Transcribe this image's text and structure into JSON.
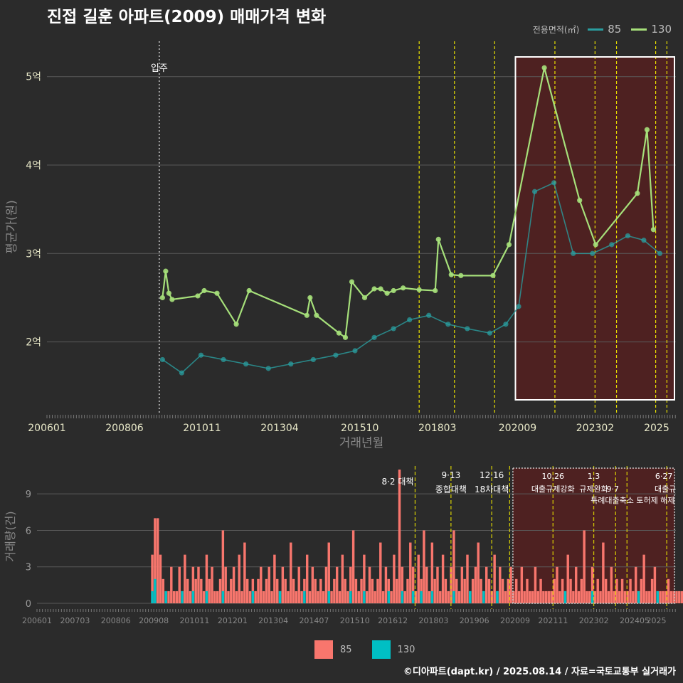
{
  "title": "진접 길훈 아파트(2009) 매매가격 변화",
  "caption": "©디아파트(dapt.kr) / 2025.08.14 / 자료=국토교통부 실거래가",
  "legend_top": {
    "title": "전용면적(㎡)",
    "items": [
      {
        "label": "85",
        "color": "#2a9d9f"
      },
      {
        "label": "130",
        "color": "#a6e07a"
      }
    ]
  },
  "legend_bottom": {
    "items": [
      {
        "label": "85",
        "color": "#f8766d"
      },
      {
        "label": "130",
        "color": "#00bfc4"
      }
    ]
  },
  "colors": {
    "bg": "#2b2b2b",
    "grid": "#5a5a5a",
    "vline": "#e8e000",
    "shade": "#6b1a1a",
    "highlight_box": "#ffffff"
  },
  "chart_data": [
    {
      "type": "line",
      "title": "진접 길훈 아파트(2009) 매매가격 변화",
      "xlabel": "거래년월",
      "ylabel": "평균가(원)",
      "x_ticks": [
        "200601",
        "200806",
        "201011",
        "201304",
        "201510",
        "201803",
        "202009",
        "202302",
        "2025"
      ],
      "y_ticks": [
        {
          "value": 2,
          "label": "2억"
        },
        {
          "value": 3,
          "label": "3억"
        },
        {
          "value": 4,
          "label": "4억"
        },
        {
          "value": 5,
          "label": "5억"
        }
      ],
      "ylim": [
        1.2,
        5.4
      ],
      "xlim": [
        2006.0,
        2025.6
      ],
      "annotation": {
        "label": "입주",
        "x": 2009.5
      },
      "policy_lines_x": [
        2017.6,
        2018.7,
        2019.95,
        2021.83,
        2023.08,
        2023.75,
        2024.97,
        2025.32
      ],
      "highlight_x_range": [
        2020.6,
        2025.6
      ],
      "series": [
        {
          "name": "130",
          "x": [
            2009.6,
            2009.7,
            2009.8,
            2009.9,
            2010.7,
            2010.9,
            2011.3,
            2011.9,
            2012.3,
            2014.1,
            2014.2,
            2014.4,
            2015.1,
            2015.3,
            2015.5,
            2015.9,
            2016.2,
            2016.4,
            2016.6,
            2016.8,
            2017.1,
            2017.6,
            2018.1,
            2018.2,
            2018.6,
            2018.9,
            2019.9,
            2020.4,
            2021.5,
            2022.6,
            2023.1,
            2024.4,
            2024.7,
            2024.9
          ],
          "values": [
            2.5,
            2.8,
            2.55,
            2.48,
            2.52,
            2.58,
            2.55,
            2.2,
            2.58,
            2.3,
            2.5,
            2.3,
            2.1,
            2.05,
            2.68,
            2.5,
            2.6,
            2.6,
            2.55,
            2.58,
            2.61,
            2.59,
            2.58,
            3.16,
            2.76,
            2.75,
            2.75,
            3.1,
            5.1,
            3.6,
            3.1,
            3.68,
            4.4,
            3.27
          ],
          "color": "#a6e07a"
        },
        {
          "name": "85",
          "x": [
            2009.6,
            2010.2,
            2010.8,
            2011.5,
            2012.2,
            2012.9,
            2013.6,
            2014.3,
            2015.0,
            2015.6,
            2016.2,
            2016.8,
            2017.3,
            2017.9,
            2018.5,
            2019.1,
            2019.8,
            2020.3,
            2020.7,
            2021.2,
            2021.8,
            2022.4,
            2023.0,
            2023.6,
            2024.1,
            2024.6,
            2025.1
          ],
          "values": [
            1.8,
            1.65,
            1.85,
            1.8,
            1.75,
            1.7,
            1.75,
            1.8,
            1.85,
            1.9,
            2.05,
            2.15,
            2.25,
            2.3,
            2.2,
            2.15,
            2.1,
            2.2,
            2.4,
            3.7,
            3.8,
            3.0,
            3.0,
            3.1,
            3.2,
            3.15,
            3.0
          ],
          "color": "#2a9d9f"
        }
      ]
    },
    {
      "type": "bar",
      "ylabel": "거래량(건)",
      "ylim": [
        0,
        11
      ],
      "y_ticks": [
        0,
        3,
        6,
        9
      ],
      "x_ticks": [
        "200601",
        "200703",
        "200806",
        "200908",
        "201011",
        "201201",
        "201304",
        "201407",
        "201510",
        "201612",
        "201803",
        "201906",
        "202009",
        "202111",
        "202302",
        "202405",
        "2025"
      ],
      "policies": [
        {
          "date": "8·2",
          "name": "대책",
          "x": 2017.6
        },
        {
          "date": "9·13",
          "name": "종합대책",
          "x": 2018.7
        },
        {
          "date": "12·16",
          "name": "18차대책",
          "x": 2019.95
        },
        {
          "date": "",
          "name": "",
          "x": 2020.5
        },
        {
          "date": "10.26",
          "name": "대출규제강화",
          "x": 2021.83
        },
        {
          "date": "1.3",
          "name": "규제완화",
          "x": 2023.08
        },
        {
          "date": "",
          "name": "9·7",
          "x": 2023.75
        },
        {
          "date": "",
          "name": "특례대출축소 토허제 해제",
          "x": 2024.1
        },
        {
          "date": "6·27",
          "name": "대출규",
          "x": 2025.32
        }
      ],
      "highlight_x_range": [
        2020.6,
        2025.6
      ],
      "series": [
        {
          "name": "85",
          "color": "#f8766d",
          "values_note": "monthly counts",
          "x_start": 2009.5,
          "values": [
            4,
            7,
            7,
            4,
            2,
            1,
            1,
            3,
            1,
            1,
            3,
            1,
            4,
            2,
            1,
            3,
            2,
            3,
            2,
            1,
            4,
            2,
            3,
            1,
            1,
            2,
            6,
            3,
            1,
            2,
            3,
            1,
            4,
            1,
            5,
            2,
            1,
            2,
            1,
            2,
            3,
            1,
            2,
            3,
            1,
            4,
            2,
            1,
            3,
            2,
            1,
            5,
            2,
            1,
            3,
            1,
            2,
            4,
            1,
            3,
            2,
            1,
            2,
            1,
            3,
            5,
            1,
            2,
            3,
            1,
            4,
            2,
            1,
            3,
            6,
            2,
            1,
            2,
            4,
            1,
            3,
            2,
            1,
            2,
            5,
            1,
            3,
            2,
            1,
            4,
            2,
            11,
            3,
            1,
            2,
            5,
            3,
            1,
            4,
            2,
            6,
            3,
            1,
            5,
            2,
            3,
            1,
            4,
            2,
            1,
            3,
            6,
            2,
            1,
            3,
            2,
            4,
            1,
            2,
            3,
            5,
            2,
            1,
            3,
            2,
            1,
            4,
            1,
            3,
            2,
            1,
            2,
            3,
            1,
            2,
            1,
            3,
            1,
            2,
            1,
            1,
            3,
            1,
            2,
            1,
            1,
            1,
            1,
            2,
            3,
            1,
            2,
            1,
            4,
            2,
            1,
            3,
            1,
            2,
            6,
            1,
            1,
            3,
            1,
            2,
            1,
            5,
            2,
            1,
            3,
            1,
            2,
            1,
            2,
            1,
            1,
            2,
            1,
            3,
            1,
            2,
            4,
            1,
            1,
            2,
            3,
            1,
            1,
            1,
            1,
            2,
            1,
            1,
            1,
            1,
            1,
            1
          ]
        },
        {
          "name": "130",
          "color": "#00bfc4",
          "x_start": 2009.5,
          "values": [
            1,
            2,
            0,
            0,
            0,
            1,
            0,
            0,
            0,
            0,
            0,
            1,
            0,
            0,
            0,
            1,
            0,
            0,
            0,
            0,
            1,
            0,
            0,
            0,
            0,
            0,
            1,
            0,
            0,
            0,
            0,
            0,
            0,
            0,
            0,
            0,
            0,
            1,
            0,
            0,
            0,
            0,
            0,
            0,
            0,
            0,
            0,
            1,
            0,
            0,
            0,
            0,
            0,
            0,
            0,
            0,
            1,
            0,
            0,
            0,
            0,
            0,
            0,
            0,
            0,
            1,
            0,
            0,
            0,
            0,
            0,
            0,
            0,
            1,
            0,
            0,
            0,
            0,
            1,
            0,
            0,
            0,
            0,
            0,
            0,
            0,
            0,
            1,
            0,
            0,
            0,
            0,
            1,
            0,
            0,
            0,
            1,
            0,
            0,
            1,
            0,
            0,
            0,
            1,
            0,
            0,
            0,
            0,
            0,
            0,
            0,
            1,
            0,
            0,
            0,
            0,
            0,
            1,
            0,
            0,
            0,
            0,
            1,
            0,
            0,
            0,
            0,
            1,
            0,
            0,
            0,
            0,
            0,
            0,
            0,
            0,
            0,
            0,
            0,
            0,
            0,
            0,
            0,
            0,
            0,
            0,
            0,
            0,
            0,
            0,
            0,
            0,
            1,
            0,
            0,
            0,
            0,
            0,
            0,
            0,
            0,
            0,
            1,
            0,
            0,
            0,
            0,
            0,
            0,
            0,
            0,
            0,
            0,
            0,
            0,
            0,
            0,
            0,
            0,
            1,
            0,
            0,
            0,
            0,
            0,
            0,
            1,
            0,
            0,
            0,
            0,
            0,
            0,
            0,
            0,
            0,
            0,
            1,
            0,
            0
          ]
        }
      ]
    }
  ]
}
